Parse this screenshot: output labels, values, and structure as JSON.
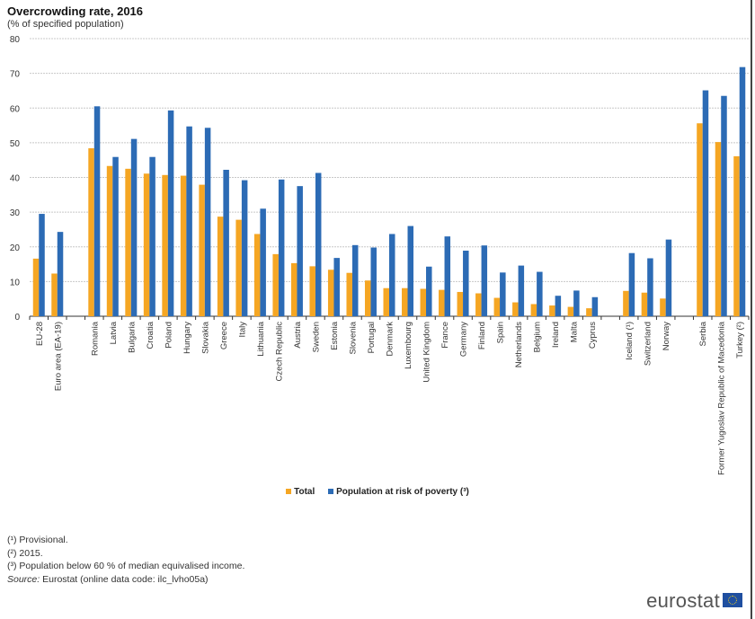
{
  "chart_data": {
    "type": "bar",
    "title": "Overcrowding rate, 2016",
    "subtitle": "(% of specified population)",
    "xlabel": "",
    "ylabel": "",
    "ylim": [
      0,
      80
    ],
    "yticks": [
      "0",
      "10",
      "20",
      "30",
      "40",
      "50",
      "60",
      "70",
      "80"
    ],
    "grid": true,
    "legend_position": "bottom",
    "group_sizes": [
      2,
      28,
      3,
      3
    ],
    "categories": [
      "EU-28",
      "Euro area (EA-19)",
      "Romania",
      "Latvia",
      "Bulgaria",
      "Croatia",
      "Poland",
      "Hungary",
      "Slovakia",
      "Greece",
      "Italy",
      "Lithuania",
      "Czech Republic",
      "Austria",
      "Sweden",
      "Estonia",
      "Slovenia",
      "Portugal",
      "Denmark",
      "Luxembourg",
      "United Kingdom",
      "France",
      "Germany",
      "Finland",
      "Spain",
      "Netherlands",
      "Belgium",
      "Ireland",
      "Malta",
      "Cyprus",
      "Iceland (¹)",
      "Switzerland",
      "Norway",
      "Serbia",
      "Former Yugoslav Republic of Macedonia",
      "Turkey (²)"
    ],
    "series": [
      {
        "name": "Total",
        "color": "#f5a623",
        "values": [
          16.6,
          12.3,
          48.4,
          43.3,
          42.5,
          41.1,
          40.7,
          40.5,
          37.9,
          28.7,
          27.8,
          23.7,
          17.9,
          15.3,
          14.4,
          13.4,
          12.5,
          10.3,
          8.1,
          8.1,
          7.9,
          7.6,
          7.0,
          6.6,
          5.3,
          4.0,
          3.5,
          3.1,
          2.7,
          2.3,
          7.3,
          6.8,
          5.1,
          55.6,
          50.2,
          46.1
        ]
      },
      {
        "name": "Population at risk of poverty (³)",
        "color": "#2c6bb5",
        "values": [
          29.5,
          24.3,
          60.5,
          45.9,
          51.1,
          45.9,
          59.3,
          54.7,
          54.3,
          42.2,
          39.2,
          31.0,
          39.4,
          37.5,
          41.3,
          16.8,
          20.5,
          19.8,
          23.7,
          26.0,
          14.3,
          23.0,
          18.9,
          20.4,
          12.6,
          14.6,
          12.8,
          5.9,
          7.4,
          5.5,
          18.2,
          16.7,
          22.1,
          65.1,
          63.5,
          71.8
        ]
      }
    ]
  },
  "notes": [
    "(¹) Provisional.",
    "(²) 2015.",
    "(³) Population below 60 % of median equivalised income."
  ],
  "source_label": "Source:",
  "source_text": "Eurostat (online data code: ilc_lvho05a)",
  "logo_text": "eurostat"
}
